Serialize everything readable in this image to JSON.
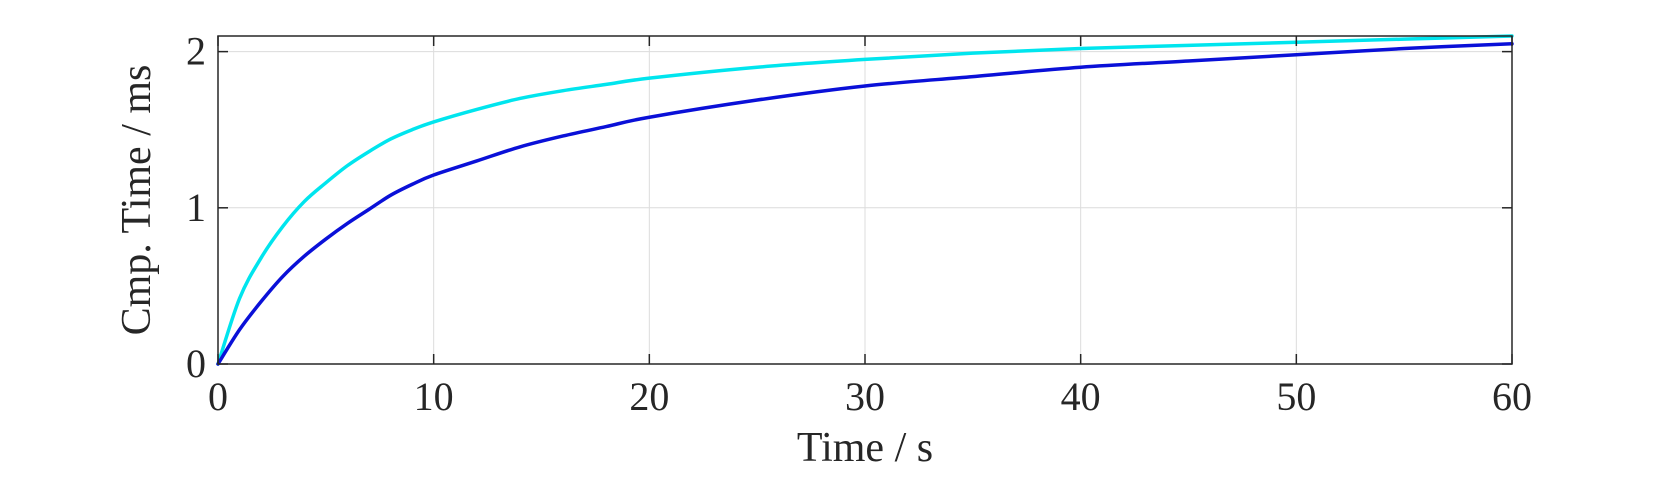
{
  "chart_data": {
    "type": "line",
    "title": "",
    "xlabel": "Time / s",
    "ylabel": "Cmp. Time / ms",
    "xlim": [
      0,
      60
    ],
    "ylim": [
      0,
      2.1
    ],
    "xticks": [
      0,
      10,
      20,
      30,
      40,
      50,
      60
    ],
    "yticks": [
      0,
      1,
      2
    ],
    "xtick_labels": [
      "0",
      "10",
      "20",
      "30",
      "40",
      "50",
      "60"
    ],
    "ytick_labels": [
      "0",
      "1",
      "2"
    ],
    "grid": true,
    "legend": "none",
    "series": [
      {
        "color": "#00e5ee",
        "x": [
          0,
          1,
          2,
          3,
          4,
          5,
          6,
          7,
          8,
          9,
          10,
          12,
          14,
          16,
          18,
          20,
          25,
          30,
          35,
          40,
          45,
          50,
          55,
          60
        ],
        "y": [
          0,
          0.42,
          0.68,
          0.88,
          1.04,
          1.16,
          1.27,
          1.36,
          1.44,
          1.5,
          1.55,
          1.63,
          1.7,
          1.75,
          1.79,
          1.83,
          1.9,
          1.95,
          1.99,
          2.02,
          2.04,
          2.06,
          2.08,
          2.1
        ]
      },
      {
        "color": "#0a10d8",
        "x": [
          0,
          1,
          2,
          3,
          4,
          5,
          6,
          7,
          8,
          9,
          10,
          12,
          14,
          16,
          18,
          20,
          25,
          30,
          35,
          40,
          45,
          50,
          55,
          60
        ],
        "y": [
          0,
          0.22,
          0.4,
          0.56,
          0.69,
          0.8,
          0.9,
          0.99,
          1.08,
          1.15,
          1.21,
          1.3,
          1.39,
          1.46,
          1.52,
          1.58,
          1.69,
          1.78,
          1.84,
          1.9,
          1.94,
          1.98,
          2.02,
          2.05
        ]
      }
    ]
  }
}
